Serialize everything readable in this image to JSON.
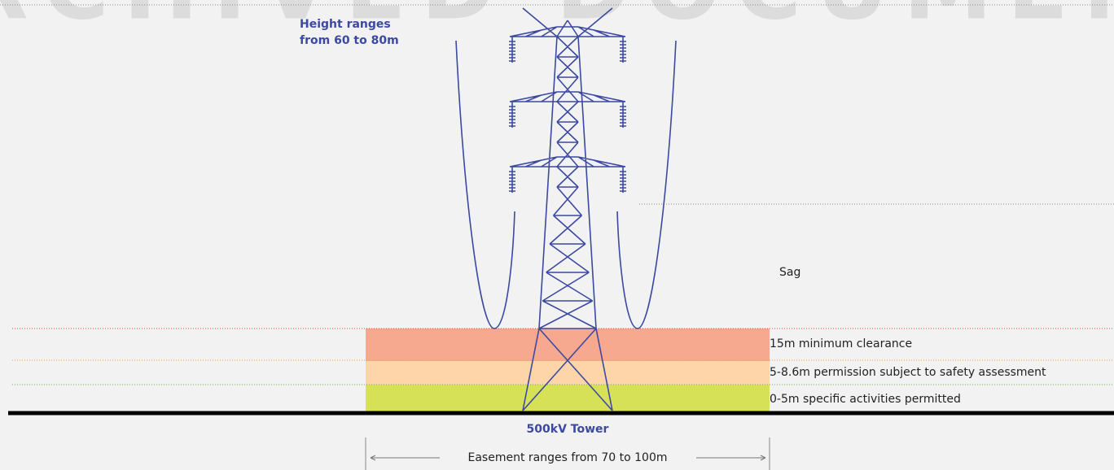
{
  "watermark": "ARCHIVED DOCUMENT",
  "height_label": [
    "Height ranges",
    "from 60 to 80m"
  ],
  "sag_label": "Sag",
  "zones": [
    {
      "label": "15m minimum clearance"
    },
    {
      "label": "5-8.6m permission subject to safety assessment"
    },
    {
      "label": "0-5m specific activities permitted"
    }
  ],
  "tower_label": "500kV Tower",
  "easement_label": "Easement ranges from 70 to 100m"
}
